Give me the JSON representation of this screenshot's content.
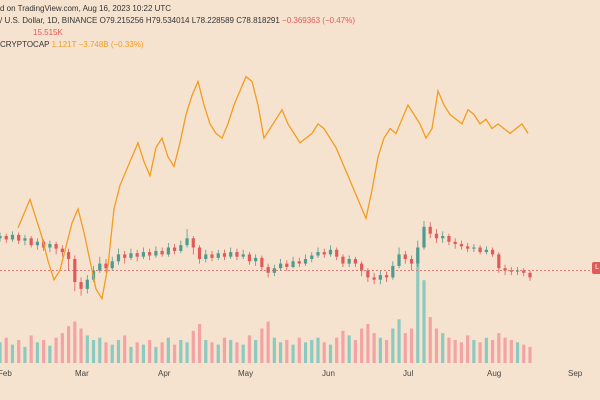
{
  "legend": {
    "line1": {
      "text": "d on TradingView.com, Aug 16, 2023 10:22 UTC"
    },
    "line2": {
      "name": "/ U.S. Dollar, 1D, BINANCE",
      "open": "O79.215256",
      "high": "H79.534014",
      "low": "L78.228589",
      "close": "C78.818291",
      "change": "−0.369363 (−0.47%)"
    },
    "line3": {
      "volume": "15.515K"
    },
    "line4": {
      "name": "CRYPTOCAP",
      "value": "1.121T",
      "change": "−3.748B (−0.33%)"
    }
  },
  "price_tag": "L",
  "colors": {
    "up": "#4e9b8f",
    "down": "#e05a5a",
    "up_volume": "#8ec9c0",
    "down_volume": "#f2a3a3",
    "overlay": "#f39c1f",
    "background": "#f6e3cf"
  },
  "chart_data": {
    "type": "candlestick",
    "x_ticks": [
      "Feb",
      "Mar",
      "Apr",
      "May",
      "Jun",
      "Jul",
      "Aug",
      "Sep"
    ],
    "last_close": 78.818291,
    "overlay_series": {
      "name": "CRYPTOCAP",
      "last_value": "1.121T"
    },
    "candles": [
      {
        "o": 0.58,
        "c": 0.6,
        "h": 0.63,
        "l": 0.55
      },
      {
        "o": 0.6,
        "c": 0.57,
        "h": 0.62,
        "l": 0.54
      },
      {
        "o": 0.57,
        "c": 0.61,
        "h": 0.64,
        "l": 0.55
      },
      {
        "o": 0.61,
        "c": 0.56,
        "h": 0.63,
        "l": 0.53
      },
      {
        "o": 0.56,
        "c": 0.58,
        "h": 0.61,
        "l": 0.52
      },
      {
        "o": 0.58,
        "c": 0.52,
        "h": 0.6,
        "l": 0.5
      },
      {
        "o": 0.52,
        "c": 0.55,
        "h": 0.58,
        "l": 0.48
      },
      {
        "o": 0.55,
        "c": 0.5,
        "h": 0.57,
        "l": 0.47
      },
      {
        "o": 0.5,
        "c": 0.53,
        "h": 0.56,
        "l": 0.46
      },
      {
        "o": 0.53,
        "c": 0.49,
        "h": 0.55,
        "l": 0.44
      },
      {
        "o": 0.49,
        "c": 0.46,
        "h": 0.52,
        "l": 0.42
      },
      {
        "o": 0.46,
        "c": 0.4,
        "h": 0.49,
        "l": 0.3
      },
      {
        "o": 0.4,
        "c": 0.2,
        "h": 0.43,
        "l": 0.12
      },
      {
        "o": 0.2,
        "c": 0.14,
        "h": 0.24,
        "l": 0.08
      },
      {
        "o": 0.14,
        "c": 0.22,
        "h": 0.26,
        "l": 0.1
      },
      {
        "o": 0.22,
        "c": 0.3,
        "h": 0.34,
        "l": 0.2
      },
      {
        "o": 0.3,
        "c": 0.36,
        "h": 0.42,
        "l": 0.28
      },
      {
        "o": 0.36,
        "c": 0.32,
        "h": 0.4,
        "l": 0.28
      },
      {
        "o": 0.32,
        "c": 0.38,
        "h": 0.42,
        "l": 0.3
      },
      {
        "o": 0.38,
        "c": 0.44,
        "h": 0.49,
        "l": 0.35
      },
      {
        "o": 0.44,
        "c": 0.41,
        "h": 0.47,
        "l": 0.36
      },
      {
        "o": 0.41,
        "c": 0.45,
        "h": 0.49,
        "l": 0.39
      },
      {
        "o": 0.45,
        "c": 0.42,
        "h": 0.48,
        "l": 0.38
      },
      {
        "o": 0.42,
        "c": 0.46,
        "h": 0.5,
        "l": 0.4
      },
      {
        "o": 0.46,
        "c": 0.43,
        "h": 0.49,
        "l": 0.39
      },
      {
        "o": 0.43,
        "c": 0.47,
        "h": 0.51,
        "l": 0.41
      },
      {
        "o": 0.47,
        "c": 0.44,
        "h": 0.5,
        "l": 0.42
      },
      {
        "o": 0.44,
        "c": 0.5,
        "h": 0.54,
        "l": 0.42
      },
      {
        "o": 0.5,
        "c": 0.47,
        "h": 0.53,
        "l": 0.44
      },
      {
        "o": 0.47,
        "c": 0.52,
        "h": 0.56,
        "l": 0.45
      },
      {
        "o": 0.52,
        "c": 0.58,
        "h": 0.66,
        "l": 0.5
      },
      {
        "o": 0.58,
        "c": 0.5,
        "h": 0.6,
        "l": 0.44
      },
      {
        "o": 0.5,
        "c": 0.4,
        "h": 0.52,
        "l": 0.36
      },
      {
        "o": 0.4,
        "c": 0.44,
        "h": 0.48,
        "l": 0.37
      },
      {
        "o": 0.44,
        "c": 0.41,
        "h": 0.47,
        "l": 0.38
      },
      {
        "o": 0.41,
        "c": 0.45,
        "h": 0.48,
        "l": 0.39
      },
      {
        "o": 0.45,
        "c": 0.42,
        "h": 0.48,
        "l": 0.39
      },
      {
        "o": 0.42,
        "c": 0.46,
        "h": 0.5,
        "l": 0.4
      },
      {
        "o": 0.46,
        "c": 0.42,
        "h": 0.49,
        "l": 0.39
      },
      {
        "o": 0.42,
        "c": 0.44,
        "h": 0.48,
        "l": 0.4
      },
      {
        "o": 0.44,
        "c": 0.38,
        "h": 0.46,
        "l": 0.35
      },
      {
        "o": 0.38,
        "c": 0.41,
        "h": 0.44,
        "l": 0.34
      },
      {
        "o": 0.41,
        "c": 0.33,
        "h": 0.43,
        "l": 0.3
      },
      {
        "o": 0.33,
        "c": 0.28,
        "h": 0.36,
        "l": 0.24
      },
      {
        "o": 0.28,
        "c": 0.32,
        "h": 0.35,
        "l": 0.25
      },
      {
        "o": 0.32,
        "c": 0.36,
        "h": 0.4,
        "l": 0.3
      },
      {
        "o": 0.36,
        "c": 0.33,
        "h": 0.39,
        "l": 0.3
      },
      {
        "o": 0.33,
        "c": 0.38,
        "h": 0.42,
        "l": 0.32
      },
      {
        "o": 0.38,
        "c": 0.36,
        "h": 0.41,
        "l": 0.33
      },
      {
        "o": 0.36,
        "c": 0.4,
        "h": 0.44,
        "l": 0.34
      },
      {
        "o": 0.4,
        "c": 0.43,
        "h": 0.46,
        "l": 0.37
      },
      {
        "o": 0.43,
        "c": 0.46,
        "h": 0.5,
        "l": 0.41
      },
      {
        "o": 0.46,
        "c": 0.44,
        "h": 0.49,
        "l": 0.41
      },
      {
        "o": 0.44,
        "c": 0.48,
        "h": 0.52,
        "l": 0.42
      },
      {
        "o": 0.48,
        "c": 0.42,
        "h": 0.5,
        "l": 0.39
      },
      {
        "o": 0.42,
        "c": 0.36,
        "h": 0.44,
        "l": 0.33
      },
      {
        "o": 0.36,
        "c": 0.4,
        "h": 0.43,
        "l": 0.33
      },
      {
        "o": 0.4,
        "c": 0.36,
        "h": 0.42,
        "l": 0.33
      },
      {
        "o": 0.36,
        "c": 0.3,
        "h": 0.38,
        "l": 0.25
      },
      {
        "o": 0.3,
        "c": 0.24,
        "h": 0.32,
        "l": 0.2
      },
      {
        "o": 0.24,
        "c": 0.22,
        "h": 0.28,
        "l": 0.18
      },
      {
        "o": 0.22,
        "c": 0.26,
        "h": 0.3,
        "l": 0.18
      },
      {
        "o": 0.26,
        "c": 0.24,
        "h": 0.29,
        "l": 0.2
      },
      {
        "o": 0.24,
        "c": 0.34,
        "h": 0.38,
        "l": 0.22
      },
      {
        "o": 0.34,
        "c": 0.44,
        "h": 0.5,
        "l": 0.32
      },
      {
        "o": 0.44,
        "c": 0.4,
        "h": 0.47,
        "l": 0.36
      },
      {
        "o": 0.4,
        "c": 0.36,
        "h": 0.43,
        "l": 0.3
      },
      {
        "o": 0.36,
        "c": 0.5,
        "h": 0.56,
        "l": 0.33
      },
      {
        "o": 0.5,
        "c": 0.68,
        "h": 0.73,
        "l": 0.48
      },
      {
        "o": 0.68,
        "c": 0.62,
        "h": 0.72,
        "l": 0.58
      },
      {
        "o": 0.62,
        "c": 0.58,
        "h": 0.66,
        "l": 0.54
      },
      {
        "o": 0.58,
        "c": 0.6,
        "h": 0.64,
        "l": 0.54
      },
      {
        "o": 0.6,
        "c": 0.55,
        "h": 0.62,
        "l": 0.52
      },
      {
        "o": 0.55,
        "c": 0.53,
        "h": 0.58,
        "l": 0.49
      },
      {
        "o": 0.53,
        "c": 0.51,
        "h": 0.56,
        "l": 0.48
      },
      {
        "o": 0.51,
        "c": 0.49,
        "h": 0.54,
        "l": 0.46
      },
      {
        "o": 0.49,
        "c": 0.5,
        "h": 0.53,
        "l": 0.46
      },
      {
        "o": 0.5,
        "c": 0.46,
        "h": 0.52,
        "l": 0.44
      },
      {
        "o": 0.46,
        "c": 0.48,
        "h": 0.51,
        "l": 0.44
      },
      {
        "o": 0.48,
        "c": 0.44,
        "h": 0.5,
        "l": 0.42
      },
      {
        "o": 0.44,
        "c": 0.32,
        "h": 0.46,
        "l": 0.28
      },
      {
        "o": 0.32,
        "c": 0.3,
        "h": 0.35,
        "l": 0.26
      },
      {
        "o": 0.3,
        "c": 0.29,
        "h": 0.33,
        "l": 0.26
      },
      {
        "o": 0.29,
        "c": 0.3,
        "h": 0.33,
        "l": 0.26
      },
      {
        "o": 0.3,
        "c": 0.28,
        "h": 0.32,
        "l": 0.25
      },
      {
        "o": 0.28,
        "c": 0.24,
        "h": 0.3,
        "l": 0.21
      }
    ],
    "volumes": [
      0.18,
      0.22,
      0.16,
      0.2,
      0.14,
      0.24,
      0.18,
      0.2,
      0.15,
      0.22,
      0.26,
      0.32,
      0.36,
      0.3,
      0.24,
      0.2,
      0.22,
      0.18,
      0.16,
      0.2,
      0.24,
      0.14,
      0.18,
      0.16,
      0.2,
      0.14,
      0.18,
      0.22,
      0.16,
      0.2,
      0.18,
      0.28,
      0.34,
      0.2,
      0.18,
      0.16,
      0.22,
      0.2,
      0.18,
      0.16,
      0.24,
      0.2,
      0.3,
      0.36,
      0.22,
      0.18,
      0.2,
      0.16,
      0.22,
      0.18,
      0.2,
      0.22,
      0.18,
      0.16,
      0.22,
      0.28,
      0.24,
      0.2,
      0.3,
      0.34,
      0.26,
      0.22,
      0.2,
      0.3,
      0.38,
      0.26,
      0.3,
      0.95,
      0.72,
      0.4,
      0.3,
      0.26,
      0.22,
      0.2,
      0.18,
      0.24,
      0.2,
      0.18,
      0.22,
      0.2,
      0.26,
      0.22,
      0.2,
      0.18,
      0.16,
      0.14
    ],
    "overlay_values": [
      0.34,
      0.4,
      0.46,
      0.38,
      0.3,
      0.2,
      0.12,
      0.16,
      0.26,
      0.36,
      0.42,
      0.32,
      0.2,
      0.08,
      0.04,
      0.18,
      0.42,
      0.52,
      0.58,
      0.64,
      0.7,
      0.62,
      0.56,
      0.68,
      0.72,
      0.64,
      0.6,
      0.7,
      0.82,
      0.9,
      0.96,
      0.86,
      0.78,
      0.74,
      0.72,
      0.78,
      0.86,
      0.92,
      0.98,
      0.96,
      0.86,
      0.72,
      0.76,
      0.8,
      0.84,
      0.78,
      0.74,
      0.7,
      0.72,
      0.74,
      0.78,
      0.76,
      0.72,
      0.68,
      0.62,
      0.56,
      0.5,
      0.44,
      0.38,
      0.5,
      0.64,
      0.72,
      0.76,
      0.74,
      0.8,
      0.86,
      0.82,
      0.78,
      0.72,
      0.76,
      0.92,
      0.86,
      0.82,
      0.8,
      0.78,
      0.84,
      0.82,
      0.78,
      0.8,
      0.76,
      0.78,
      0.76,
      0.74,
      0.76,
      0.78,
      0.74
    ]
  }
}
